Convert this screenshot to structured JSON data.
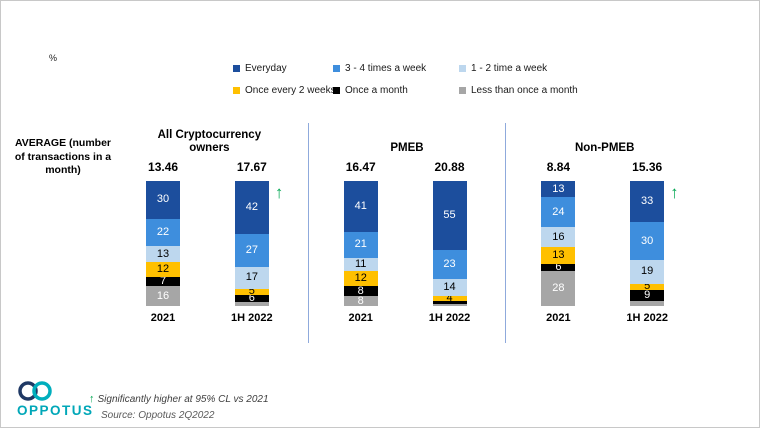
{
  "percent_label": "%",
  "legend": {
    "items": [
      {
        "label": "Everyday",
        "color": "#1c4e9d"
      },
      {
        "label": "3 - 4 times a week",
        "color": "#3e8edd"
      },
      {
        "label": "1 - 2 time a week",
        "color": "#bdd7ee"
      },
      {
        "label": "Once every 2 weeks",
        "color": "#ffc000"
      },
      {
        "label": "Once a month",
        "color": "#000000"
      },
      {
        "label": "Less than once a month",
        "color": "#a6a6a6"
      }
    ]
  },
  "axis_label": "AVERAGE (number of transactions in a month)",
  "footnote": {
    "arrow": "↑",
    "line1": "Significantly higher at 95% CL vs 2021",
    "line2": "Source: Oppotus 2Q2022"
  },
  "logo": {
    "text": "OPPOTUS"
  },
  "chart_data": {
    "type": "bar",
    "subtype": "100%-stacked-column",
    "unit": "%",
    "series_labels": [
      "Everyday",
      "3 - 4 times a week",
      "1 - 2 time a week",
      "Once every 2 weeks",
      "Once a month",
      "Less than once a month"
    ],
    "colors": [
      "#1c4e9d",
      "#3e8edd",
      "#bdd7ee",
      "#ffc000",
      "#000000",
      "#a6a6a6"
    ],
    "label_text_colors": [
      "#ffffff",
      "#ffffff",
      "#000000",
      "#000000",
      "#ffffff",
      "#ffffff"
    ],
    "significance_arrow_color": "#00a651",
    "ylim": [
      0,
      100
    ],
    "legend_position": "top",
    "groups": [
      {
        "name": "All Cryptocurrency owners",
        "bars": [
          {
            "category": "2021",
            "average": 13.46,
            "values": [
              30,
              22,
              13,
              12,
              7,
              16
            ],
            "labels": [
              "30",
              "22",
              "13",
              "12",
              "7",
              "16"
            ],
            "significantly_higher": false
          },
          {
            "category": "1H 2022",
            "average": 17.67,
            "values": [
              42,
              27,
              17,
              5,
              6,
              3
            ],
            "labels": [
              "42",
              "27",
              "17",
              "5",
              "6",
              ""
            ],
            "significantly_higher": true
          }
        ]
      },
      {
        "name": "PMEB",
        "bars": [
          {
            "category": "2021",
            "average": 16.47,
            "values": [
              41,
              21,
              11,
              12,
              8,
              8
            ],
            "labels": [
              "41",
              "21",
              "11",
              "12",
              "8",
              "8"
            ],
            "significantly_higher": false
          },
          {
            "category": "1H 2022",
            "average": 20.88,
            "values": [
              55,
              23,
              14,
              4,
              2,
              2
            ],
            "labels": [
              "55",
              "23",
              "14",
              "4",
              "",
              ""
            ],
            "significantly_higher": false
          }
        ]
      },
      {
        "name": "Non-PMEB",
        "bars": [
          {
            "category": "2021",
            "average": 8.84,
            "values": [
              13,
              24,
              16,
              13,
              6,
              28
            ],
            "labels": [
              "13",
              "24",
              "16",
              "13",
              "6",
              "28"
            ],
            "significantly_higher": false
          },
          {
            "category": "1H 2022",
            "average": 15.36,
            "values": [
              33,
              30,
              19,
              5,
              9,
              4
            ],
            "labels": [
              "33",
              "30",
              "19",
              "5",
              "9",
              ""
            ],
            "significantly_higher": true
          }
        ]
      }
    ]
  }
}
